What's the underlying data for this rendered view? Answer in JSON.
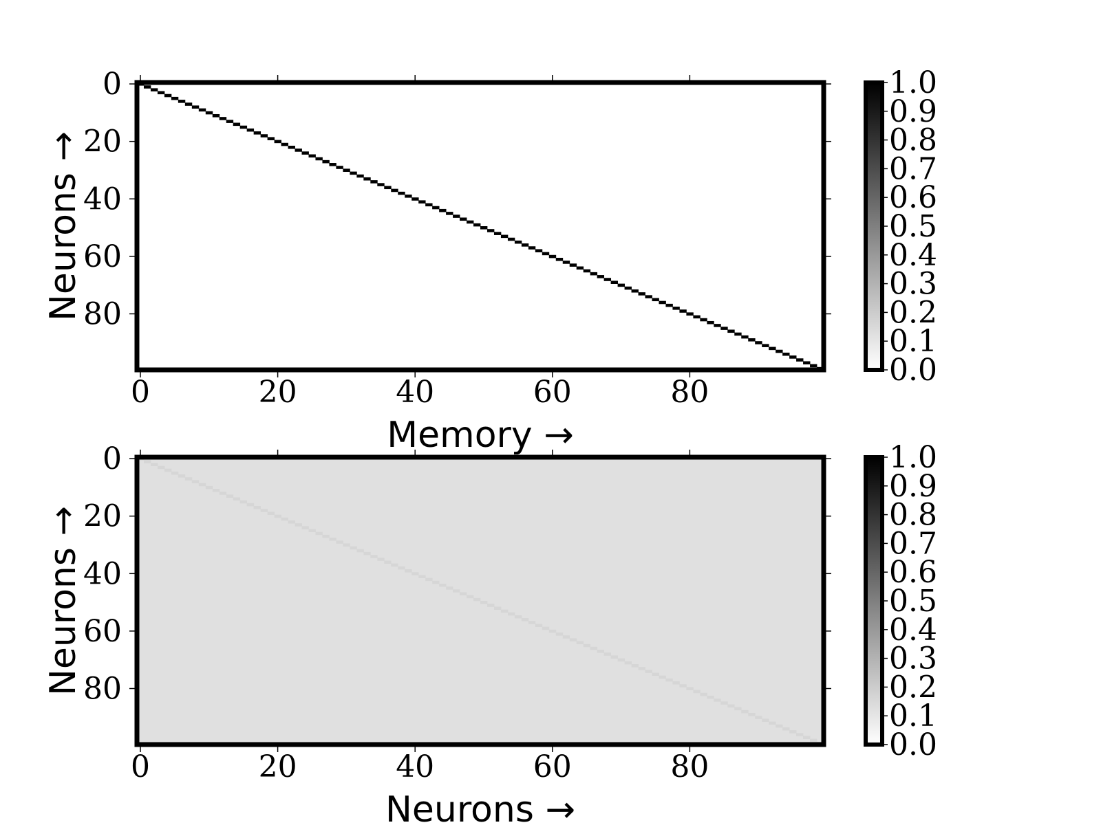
{
  "chart_data": [
    {
      "type": "heatmap",
      "title": "",
      "xlabel": "Memory →",
      "ylabel": "Neurons →",
      "matrix_shape": [
        100,
        100
      ],
      "pattern": "identity",
      "diagonal_value": 1.0,
      "off_diagonal_value": 0.0,
      "xlim": [
        0,
        99
      ],
      "ylim": [
        0,
        99
      ],
      "xticks": [
        0,
        20,
        40,
        60,
        80
      ],
      "yticks": [
        0,
        20,
        40,
        60,
        80
      ],
      "colormap": "gray_r",
      "colorbar_range": [
        0.0,
        1.0
      ],
      "colorbar_ticks": [
        "0.0",
        "0.1",
        "0.2",
        "0.3",
        "0.4",
        "0.5",
        "0.6",
        "0.7",
        "0.8",
        "0.9",
        "1.0"
      ]
    },
    {
      "type": "heatmap",
      "title": "",
      "xlabel": "Neurons →",
      "ylabel": "Neurons →",
      "matrix_shape": [
        100,
        100
      ],
      "pattern": "diagonal",
      "diagonal_value": 0.16,
      "off_diagonal_value": 0.12,
      "xlim": [
        0,
        99
      ],
      "ylim": [
        0,
        99
      ],
      "xticks": [
        0,
        20,
        40,
        60,
        80
      ],
      "yticks": [
        0,
        20,
        40,
        60,
        80
      ],
      "colormap": "gray_r",
      "colorbar_range": [
        0.0,
        1.0
      ],
      "colorbar_ticks": [
        "0.0",
        "0.1",
        "0.2",
        "0.3",
        "0.4",
        "0.5",
        "0.6",
        "0.7",
        "0.8",
        "0.9",
        "1.0"
      ]
    }
  ]
}
